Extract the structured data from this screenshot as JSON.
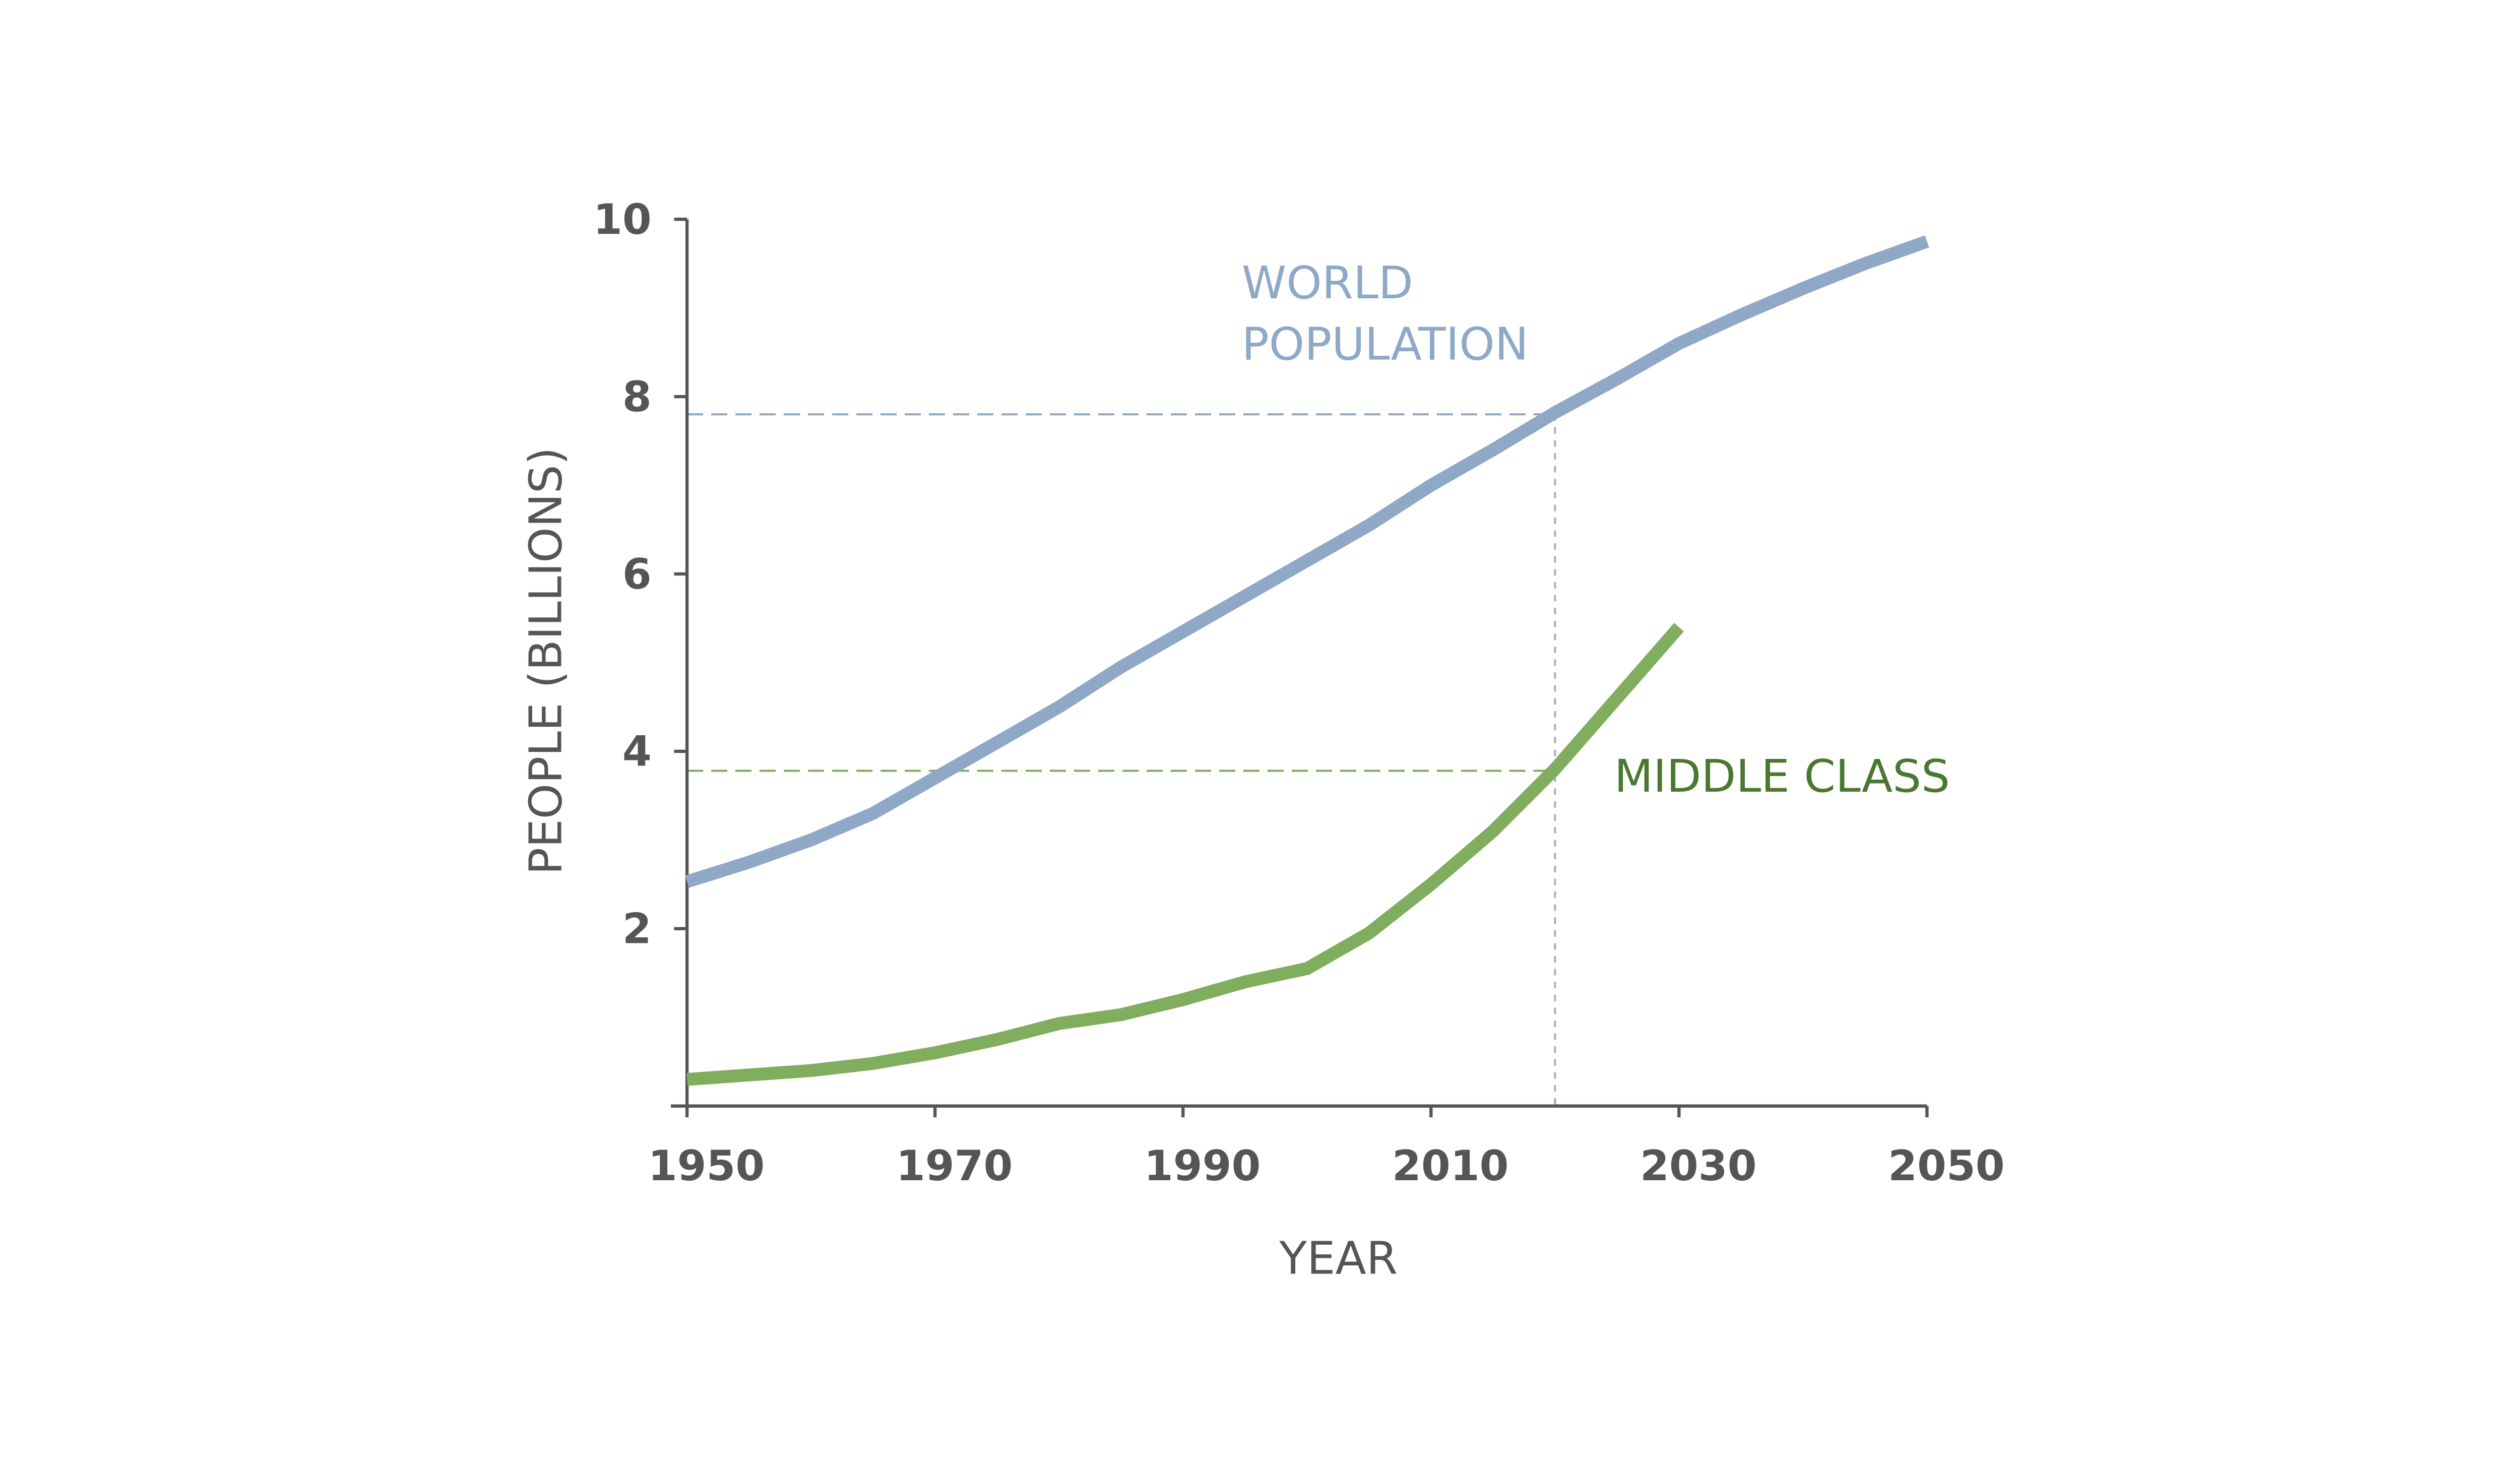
{
  "chart_data": {
    "type": "line",
    "x_label": "YEAR",
    "y_label": "PEOPLE (BILLIONS)",
    "xlim": [
      1950,
      2050
    ],
    "xticks": [
      1950,
      1970,
      1990,
      2010,
      2030,
      2050
    ],
    "ylim": [
      0,
      10
    ],
    "yticks": [
      2,
      4,
      6,
      8,
      10
    ],
    "x": [
      1950,
      1955,
      1960,
      1965,
      1970,
      1975,
      1980,
      1985,
      1990,
      1995,
      2000,
      2005,
      2010,
      2015,
      2020,
      2025,
      2030,
      2035,
      2040,
      2045,
      2050
    ],
    "series": [
      {
        "name": "WORLD POPULATION",
        "color": "#8ea8c6",
        "label_color": "#8ea8c6",
        "values": [
          2.53,
          2.75,
          3.0,
          3.3,
          3.7,
          4.1,
          4.5,
          4.95,
          5.35,
          5.75,
          6.15,
          6.55,
          7.0,
          7.4,
          7.82,
          8.2,
          8.6,
          8.92,
          9.22,
          9.5,
          9.75
        ]
      },
      {
        "name": "MIDDLE CLASS",
        "color": "#80ad5e",
        "label_color": "#4a7830",
        "values": [
          0.3,
          0.35,
          0.4,
          0.48,
          0.6,
          0.75,
          0.93,
          1.03,
          1.2,
          1.4,
          1.55,
          1.95,
          2.5,
          3.1,
          3.8,
          4.6,
          5.4,
          null,
          null,
          null,
          null
        ]
      }
    ],
    "reference_lines": {
      "x": 2020,
      "y": [
        7.8,
        3.78
      ]
    }
  }
}
